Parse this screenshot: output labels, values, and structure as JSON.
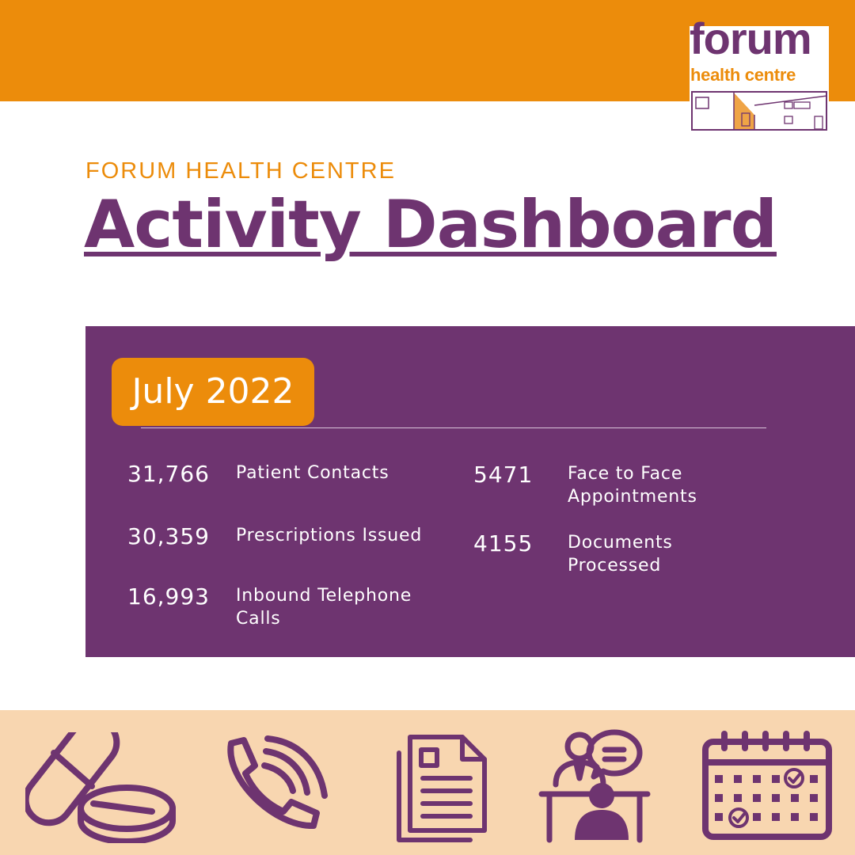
{
  "header": {
    "logo": {
      "word": "forum",
      "sub": "health centre"
    },
    "eyebrow": "FORUM HEALTH CENTRE",
    "title": "Activity Dashboard"
  },
  "dashboard": {
    "month": "July 2022",
    "stats": [
      {
        "value": "31,766",
        "label": "Patient Contacts"
      },
      {
        "value": "30,359",
        "label": "Prescriptions Issued"
      },
      {
        "value": "16,993",
        "label": "Inbound Telephone Calls"
      },
      {
        "value": "5471",
        "label": "Face to Face Appointments"
      },
      {
        "value": "4155",
        "label": "Documents Processed"
      }
    ]
  },
  "icons": [
    "pills-icon",
    "phone-icon",
    "documents-icon",
    "consultation-icon",
    "calendar-icon"
  ],
  "colors": {
    "orange": "#ec8c0b",
    "purple": "#6e3470",
    "peach": "#f8d6b0",
    "white": "#ffffff"
  }
}
